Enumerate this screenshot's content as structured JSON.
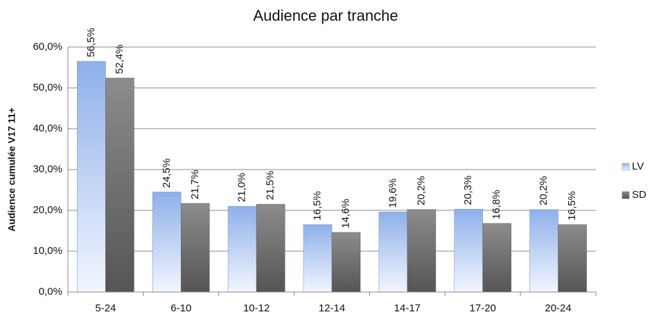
{
  "chart_data": {
    "type": "bar",
    "title": "Audience par tranche",
    "y_label": "Audience cumulée V17 11+",
    "categories": [
      "5-24",
      "6-10",
      "10-12",
      "12-14",
      "14-17",
      "17-20",
      "20-24"
    ],
    "series": [
      {
        "name": "LV",
        "color": "#8eb0ea",
        "values": [
          56.5,
          24.5,
          21.0,
          16.5,
          19.6,
          20.3,
          20.2
        ],
        "value_labels": [
          "56,5%",
          "24,5%",
          "21,0%",
          "16,5%",
          "19,6%",
          "20,3%",
          "20,2%"
        ]
      },
      {
        "name": "SD",
        "color": "#8c8c8c",
        "values": [
          52.4,
          21.7,
          21.5,
          14.6,
          20.2,
          16.8,
          16.5
        ],
        "value_labels": [
          "52,4%",
          "21,7%",
          "21,5%",
          "14,6%",
          "20,2%",
          "16,8%",
          "16,5%"
        ]
      }
    ],
    "ylim": [
      0,
      60
    ],
    "yticks": [
      {
        "value": 0,
        "label": "0,0%"
      },
      {
        "value": 10,
        "label": "10,0%"
      },
      {
        "value": 20,
        "label": "20,0%"
      },
      {
        "value": 30,
        "label": "30,0%"
      },
      {
        "value": 40,
        "label": "40,0%"
      },
      {
        "value": 50,
        "label": "50,0%"
      },
      {
        "value": 60,
        "label": "60,0%"
      }
    ],
    "grid": true,
    "legend": "right"
  }
}
